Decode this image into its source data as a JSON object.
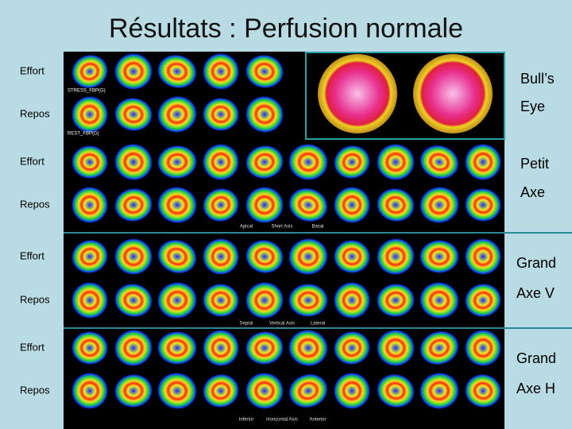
{
  "title": "Résultats : Perfusion normale",
  "rows": [
    {
      "label": "Effort"
    },
    {
      "label": "Repos"
    },
    {
      "label": "Effort"
    },
    {
      "label": "Repos"
    },
    {
      "label": "Effort"
    },
    {
      "label": "Repos"
    },
    {
      "label": "Effort"
    },
    {
      "label": "Repos"
    }
  ],
  "side_labels": [
    {
      "lines": [
        "Bull’s",
        "Eye"
      ]
    },
    {
      "lines": [
        "Petit",
        "Axe"
      ]
    },
    {
      "lines": [
        "Grand",
        "Axe V"
      ]
    },
    {
      "lines": [
        "Grand",
        "Axe H"
      ]
    }
  ],
  "scan_captions": [
    [
      "Apical",
      "Short Axis",
      "Basal"
    ],
    [
      "Septal",
      "Vertical Axis",
      "Lateral"
    ],
    [
      "Inferior",
      "Horizontal Axis",
      "Anterior"
    ]
  ],
  "image_tags": [
    "STRESS_FBP(G)",
    "REST_FBP(G)"
  ]
}
